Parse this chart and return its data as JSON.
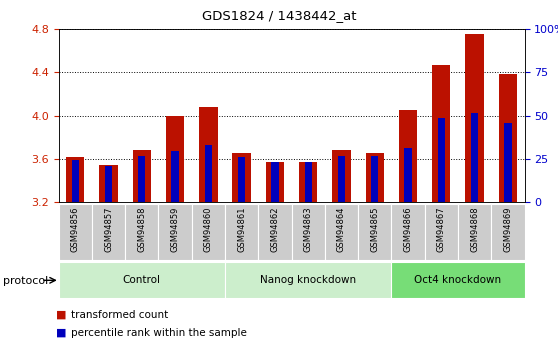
{
  "title": "GDS1824 / 1438442_at",
  "categories": [
    "GSM94856",
    "GSM94857",
    "GSM94858",
    "GSM94859",
    "GSM94860",
    "GSM94861",
    "GSM94862",
    "GSM94863",
    "GSM94864",
    "GSM94865",
    "GSM94866",
    "GSM94867",
    "GSM94868",
    "GSM94869"
  ],
  "red_values": [
    3.62,
    3.54,
    3.68,
    4.0,
    4.08,
    3.65,
    3.57,
    3.57,
    3.68,
    3.65,
    4.05,
    4.47,
    4.76,
    4.39
  ],
  "blue_values": [
    3.585,
    3.535,
    3.625,
    3.67,
    3.73,
    3.615,
    3.565,
    3.565,
    3.625,
    3.625,
    3.7,
    3.975,
    4.025,
    3.935
  ],
  "groups": [
    {
      "label": "Control",
      "start": 0,
      "end": 4,
      "color": "#cceecc"
    },
    {
      "label": "Nanog knockdown",
      "start": 5,
      "end": 9,
      "color": "#cceecc"
    },
    {
      "label": "Oct4 knockdown",
      "start": 10,
      "end": 13,
      "color": "#88dd88"
    }
  ],
  "protocol_label": "protocol",
  "y_min": 3.2,
  "y_max": 4.8,
  "y_ticks_left": [
    3.2,
    3.6,
    4.0,
    4.4,
    4.8
  ],
  "y_ticks_right": [
    0,
    25,
    50,
    75,
    100
  ],
  "y_ticks_right_labels": [
    "0",
    "25",
    "50",
    "75",
    "100%"
  ],
  "bar_color_red": "#bb1100",
  "bar_color_blue": "#0000bb",
  "bar_width": 0.55,
  "blue_bar_width": 0.22,
  "tick_label_color_left": "#cc2200",
  "tick_label_color_right": "#0000cc",
  "grid_color": "#000000",
  "plot_bg_color": "#ffffff",
  "tick_bg_color": "#cccccc",
  "legend_red_label": "transformed count",
  "legend_blue_label": "percentile rank within the sample"
}
